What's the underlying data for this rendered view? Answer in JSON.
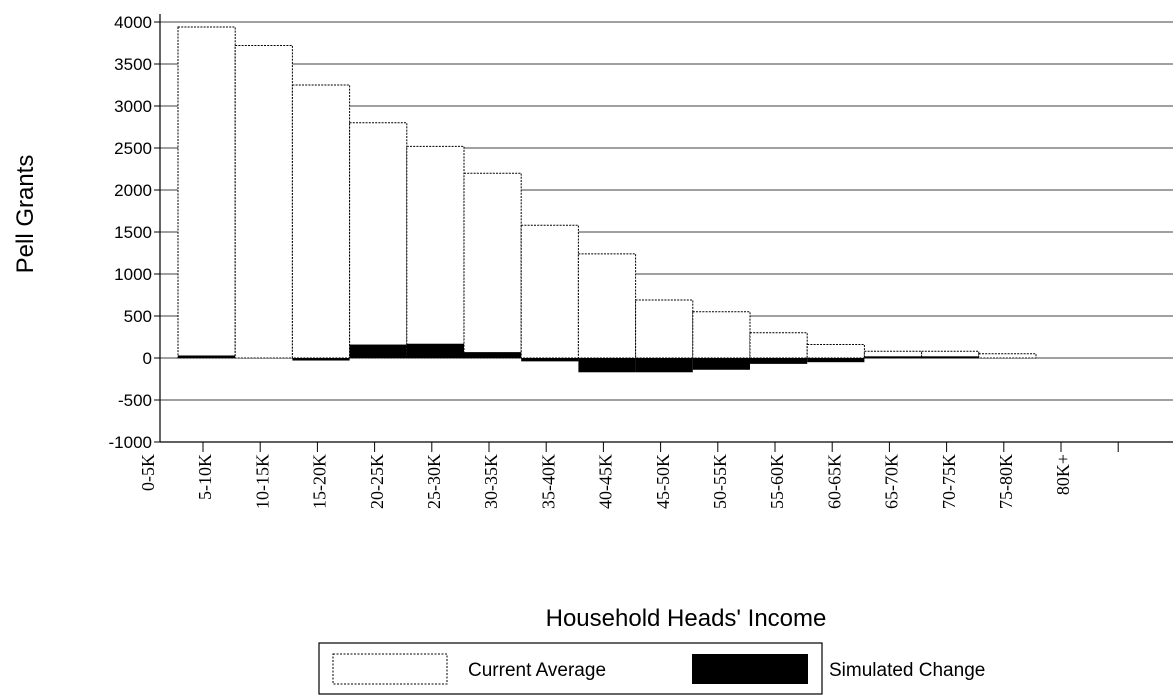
{
  "chart_data": {
    "type": "bar",
    "title": "",
    "xlabel": "Household Heads' Income",
    "ylabel": "Pell Grants",
    "ylim": [
      -1000,
      4000
    ],
    "yticks": [
      4000,
      3500,
      3000,
      2500,
      2000,
      1500,
      1000,
      500,
      0,
      -500,
      -1000
    ],
    "categories": [
      "0-5K",
      "5-10K",
      "10-15K",
      "15-20K",
      "20-25K",
      "25-30K",
      "30-35K",
      "35-40K",
      "40-45K",
      "45-50K",
      "50-55K",
      "55-60K",
      "60-65K",
      "65-70K",
      "70-75K",
      "75-80K",
      "80K+"
    ],
    "series": [
      {
        "name": "Current Average",
        "values": [
          3940,
          3720,
          3250,
          2800,
          2520,
          2200,
          1580,
          1240,
          690,
          550,
          300,
          160,
          80,
          80,
          50,
          0,
          0
        ],
        "color": "#ffffff"
      },
      {
        "name": "Simulated Change",
        "values": [
          30,
          0,
          -30,
          160,
          170,
          70,
          -40,
          -170,
          -170,
          -140,
          -70,
          -50,
          20,
          20,
          0,
          0,
          0
        ],
        "color": "#000000"
      }
    ],
    "grid": true,
    "legend": "bottom"
  }
}
